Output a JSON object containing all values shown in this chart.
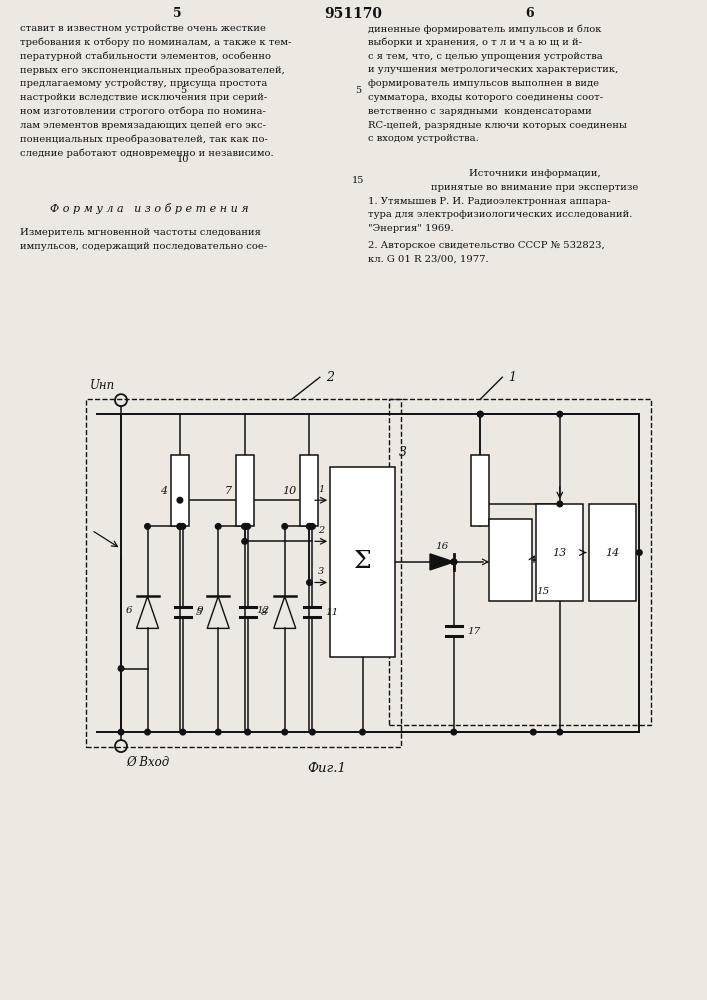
{
  "bg_color": "#ede9e2",
  "text_color": "#111111",
  "page_left": "5",
  "page_center": "951170",
  "page_right": "6",
  "left_col_lines": [
    "ставит в известном устройстве очень жесткие",
    "требования к отбору по номиналам, а также к тем-",
    "пературной стабильности элементов, особенно",
    "первых его экспоненциальных преобразователей,",
    "предлагаемому устройству, присуща простота",
    "настройки вследствие исключения при серий-",
    "ном изготовлении строгого отбора по номина-",
    "лам элементов времязадающих цепей его экс-",
    "поненциальных преобразователей, так как по-",
    "следние работают одновременно и независимо."
  ],
  "right_col_lines": [
    "диненные формирователь импульсов и блок",
    "выборки и хранения, о т л и ч а ю щ и й-",
    "с я тем, что, с целью упрощения устройства",
    "и улучшения метрологических характеристик,",
    "формирователь импульсов выполнен в виде",
    "сумматора, входы которого соединены соот-",
    "ветственно с зарядными  конденсаторами",
    "RC-цепей, разрядные ключи которых соединены",
    "с входом устройства."
  ],
  "formula_title": "Ф о р м у л а   и з о б р е т е н и я",
  "formula_line1": "Измеритель мгновенной частоты следования",
  "formula_line2": "импульсов, содержащий последовательно сое-",
  "src_header": "Источники информации,",
  "src_sub": "принятые во внимание при экспертизе",
  "src1a": "1. Утямышев Р. И. Радиоэлектронная аппара-",
  "src1b": "тура для электрофизиологических исследований.",
  "src1c": "\"Энергия\" 1969.",
  "src2a": "2. Авторское свидетельство СССР № 532823,",
  "src2b": "кл. G 01 R 23/00, 1977.",
  "fig_label": "Фиг.1",
  "vhod_label": "Ø Вход"
}
